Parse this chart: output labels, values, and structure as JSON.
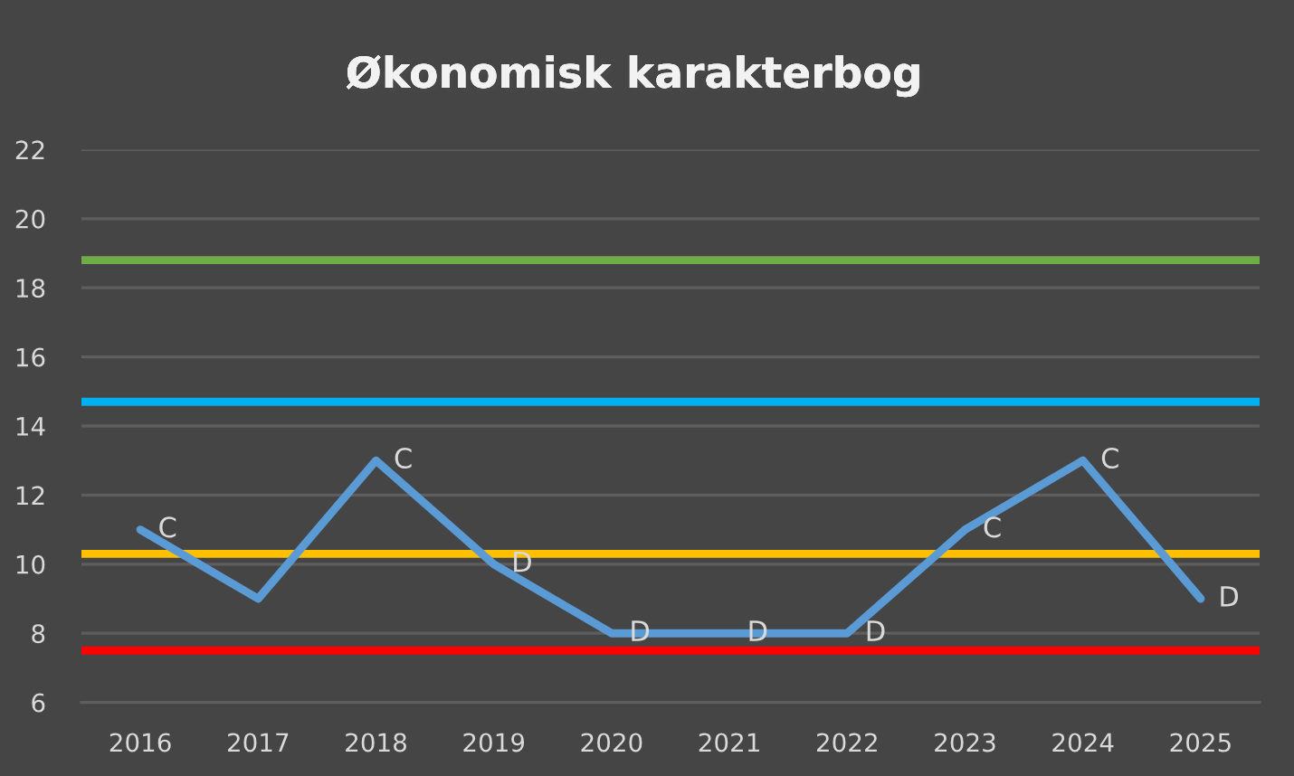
{
  "chart_data": {
    "type": "line",
    "title": "Økonomisk karakterbog",
    "categories": [
      "2016",
      "2017",
      "2018",
      "2019",
      "2020",
      "2021",
      "2022",
      "2023",
      "2024",
      "2025"
    ],
    "series": [
      {
        "color": "#5b9bd5",
        "values": [
          11,
          9,
          13,
          10,
          8,
          8,
          8,
          11,
          13,
          9
        ],
        "value_labels": [
          "C",
          null,
          "C",
          "D",
          "D",
          "D",
          "D",
          "C",
          "C",
          "D"
        ]
      }
    ],
    "ylim": [
      6,
      22
    ],
    "yticks": [
      6,
      8,
      10,
      12,
      14,
      16,
      18,
      20,
      22
    ],
    "grid": "y",
    "marker": "none",
    "line_style": "solid",
    "ref_lines": [
      {
        "axis": "y",
        "value": 18.8,
        "color": "#70ad47"
      },
      {
        "axis": "y",
        "value": 14.7,
        "color": "#00b0f0"
      },
      {
        "axis": "y",
        "value": 10.3,
        "color": "#ffc000"
      },
      {
        "axis": "y",
        "value": 7.5,
        "color": "#ff0000"
      }
    ]
  }
}
